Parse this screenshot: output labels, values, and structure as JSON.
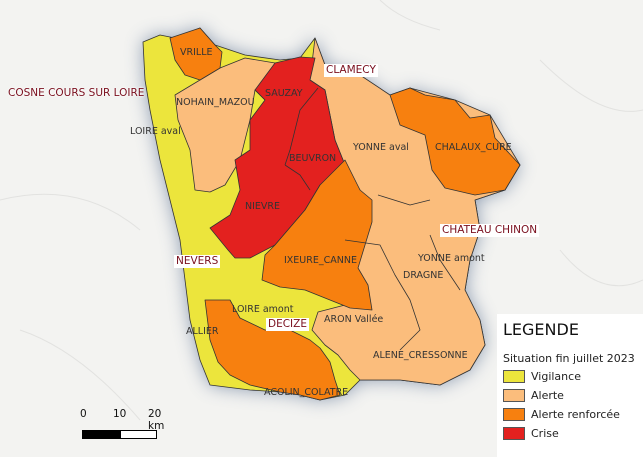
{
  "legend": {
    "title": "LEGENDE",
    "subtitle": "Situation fin juillet 2023",
    "items": [
      {
        "label": "Vigilance",
        "color": "#ece53c"
      },
      {
        "label": "Alerte",
        "color": "#fbbd7c"
      },
      {
        "label": "Alerte renforcée",
        "color": "#f7800f"
      },
      {
        "label": "Crise",
        "color": "#e3211f"
      }
    ]
  },
  "cities": {
    "cosne": "COSNE COURS SUR LOIRE",
    "clamecy": "CLAMECY",
    "chateau_chinon": "CHATEAU CHINON",
    "nevers": "NEVERS",
    "decize": "DECIZE"
  },
  "zones": {
    "vrille": "VRILLE",
    "nohain_mazou": "NOHAIN_MAZOU",
    "loire_aval": "LOIRE aval",
    "sauzay": "SAUZAY",
    "beuvron": "BEUVRON",
    "nievre": "NIEVRE",
    "yonne_aval": "YONNE aval",
    "chalaux_cure": "CHALAUX_CURE",
    "ixeure_canne": "IXEURE_CANNE",
    "yonne_amont": "YONNE amont",
    "dragne": "DRAGNE",
    "loire_amont": "LOIRE amont",
    "aron_vallee": "ARON Vallée",
    "allier": "ALLIER",
    "alene_cressonne": "ALENE_CRESSONNE",
    "acolin_colatre": "ACOLIN_COLATRE"
  },
  "scale_bar": {
    "labels": [
      "0",
      "10",
      "20 km"
    ]
  }
}
